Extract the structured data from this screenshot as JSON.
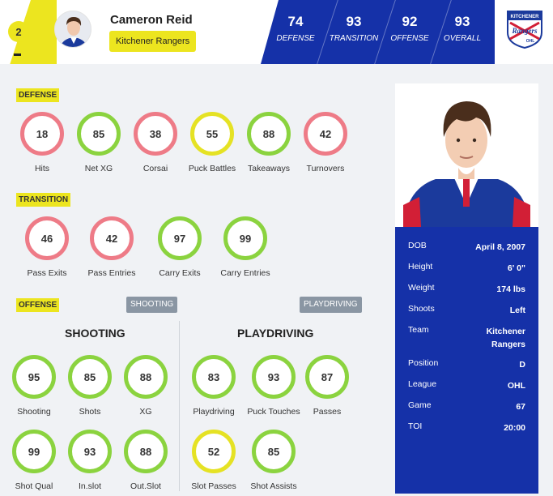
{
  "header": {
    "rank": "2",
    "rank_change": "–",
    "player_name": "Cameron Reid",
    "team": "Kitchener Rangers",
    "ratings": [
      {
        "value": "74",
        "label": "DEFENSE"
      },
      {
        "value": "93",
        "label": "TRANSITION"
      },
      {
        "value": "92",
        "label": "OFFENSE"
      },
      {
        "value": "93",
        "label": "OVERALL"
      }
    ],
    "logo_text_top": "KITCHENER",
    "logo_text_mid": "Rangers",
    "logo_text_bottom": "OHL"
  },
  "colors": {
    "accent_yellow": "#ece51f",
    "brand_blue": "#1531a8",
    "ring_green": "#8bd33f",
    "ring_red": "#ee7b87",
    "ring_yellow": "#e5e224"
  },
  "defense": {
    "title": "DEFENSE",
    "stats": [
      {
        "value": "18",
        "label": "Hits",
        "color": "red"
      },
      {
        "value": "85",
        "label": "Net XG",
        "color": "green"
      },
      {
        "value": "38",
        "label": "Corsai",
        "color": "red"
      },
      {
        "value": "55",
        "label": "Puck Battles",
        "color": "yellow"
      },
      {
        "value": "88",
        "label": "Takeaways",
        "color": "green"
      },
      {
        "value": "42",
        "label": "Turnovers",
        "color": "red"
      }
    ]
  },
  "transition": {
    "title": "TRANSITION",
    "stats": [
      {
        "value": "46",
        "label": "Pass Exits",
        "color": "red"
      },
      {
        "value": "42",
        "label": "Pass Entries",
        "color": "red"
      },
      {
        "value": "97",
        "label": "Carry Exits",
        "color": "green"
      },
      {
        "value": "99",
        "label": "Carry Entries",
        "color": "green"
      }
    ]
  },
  "offense": {
    "title": "OFFENSE",
    "shooting_tag": "SHOOTING",
    "playdriving_tag": "PLAYDRIVING",
    "shooting_title": "SHOOTING",
    "playdriving_title": "PLAYDRIVING",
    "shooting": [
      {
        "value": "95",
        "label": "Shooting",
        "color": "green"
      },
      {
        "value": "85",
        "label": "Shots",
        "color": "green"
      },
      {
        "value": "88",
        "label": "XG",
        "color": "green"
      },
      {
        "value": "99",
        "label": "Shot Qual",
        "color": "green"
      },
      {
        "value": "93",
        "label": "In.slot",
        "color": "green"
      },
      {
        "value": "88",
        "label": "Out.Slot",
        "color": "green"
      }
    ],
    "playdriving": [
      {
        "value": "83",
        "label": "Playdriving",
        "color": "green"
      },
      {
        "value": "93",
        "label": "Puck Touches",
        "color": "green"
      },
      {
        "value": "87",
        "label": "Passes",
        "color": "green"
      },
      {
        "value": "52",
        "label": "Slot Passes",
        "color": "yellow"
      },
      {
        "value": "85",
        "label": "Shot Assists",
        "color": "green"
      }
    ]
  },
  "profile": {
    "rows": [
      {
        "key": "DOB",
        "value": "April 8, 2007"
      },
      {
        "key": "Height",
        "value": "6' 0\""
      },
      {
        "key": "Weight",
        "value": "174 lbs"
      },
      {
        "key": "Shoots",
        "value": "Left"
      },
      {
        "key": "Team",
        "value": "Kitchener Rangers"
      },
      {
        "key": "Position",
        "value": "D"
      },
      {
        "key": "League",
        "value": "OHL"
      },
      {
        "key": "Game",
        "value": "67"
      },
      {
        "key": "TOI",
        "value": "20:00"
      }
    ]
  }
}
